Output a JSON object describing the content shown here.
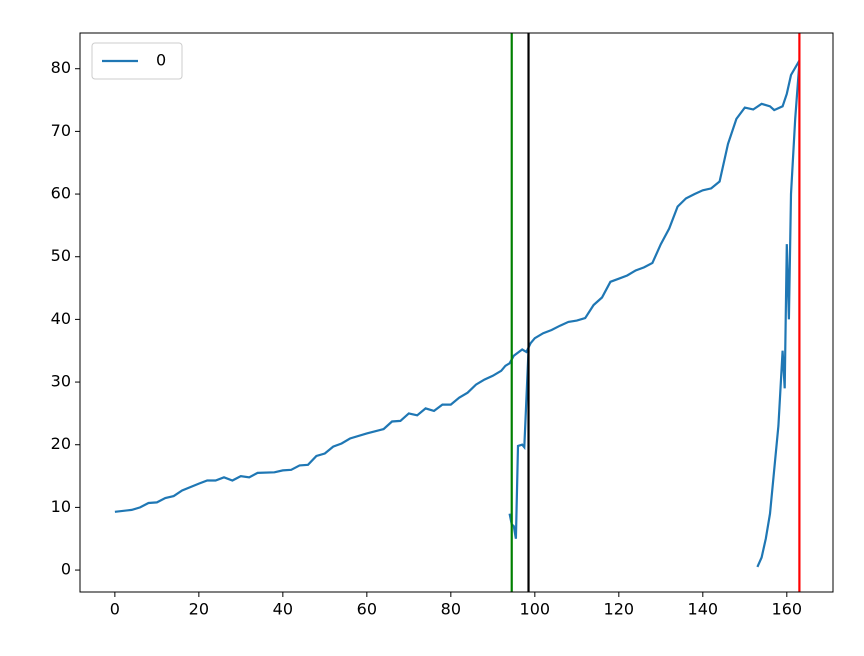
{
  "chart_data": {
    "type": "line",
    "x": [
      0,
      4,
      6,
      8,
      10,
      12,
      14,
      16,
      20,
      22,
      24,
      26,
      28,
      30,
      32,
      34,
      38,
      40,
      42,
      44,
      46,
      48,
      50,
      52,
      54,
      56,
      60,
      64,
      66,
      68,
      70,
      72,
      74,
      76,
      78,
      80,
      82,
      84,
      86,
      88,
      90,
      92,
      93,
      94,
      95,
      97,
      98,
      99,
      100,
      102,
      104,
      106,
      108,
      110,
      112,
      114,
      116,
      118,
      120,
      122,
      124,
      126,
      128,
      130,
      132,
      134,
      136,
      138,
      140,
      142,
      144,
      146,
      148,
      150,
      152,
      154,
      156,
      157,
      159,
      160,
      161,
      163,
      null,
      94,
      94.5,
      95,
      95.5,
      96,
      97,
      97.5,
      98.5,
      null,
      153,
      154,
      155,
      156,
      157,
      158,
      158.5,
      159,
      159.5,
      160,
      160.5,
      161,
      162,
      163
    ],
    "series": [
      {
        "name": "0",
        "color": "#1f77b4",
        "values": [
          9.3,
          9.6,
          10,
          10.7,
          10.8,
          11.5,
          11.8,
          12.7,
          13.8,
          14.3,
          14.3,
          14.8,
          14.3,
          15,
          14.8,
          15.5,
          15.6,
          15.9,
          16,
          16.7,
          16.8,
          18.2,
          18.6,
          19.7,
          20.2,
          21,
          21.8,
          22.5,
          23.7,
          23.8,
          25,
          24.7,
          25.8,
          25.4,
          26.4,
          26.4,
          27.5,
          28.3,
          29.6,
          30.4,
          31,
          31.8,
          32.6,
          33,
          34.2,
          35.2,
          34.8,
          36.2,
          37,
          37.8,
          38.3,
          39,
          39.6,
          39.8,
          40.2,
          42.3,
          43.5,
          46,
          46.5,
          47,
          47.8,
          48.3,
          49,
          52,
          54.5,
          58,
          59.3,
          60,
          60.6,
          60.9,
          62,
          68,
          72,
          73.8,
          73.5,
          74.4,
          74,
          73.4,
          74,
          76,
          79,
          81.3,
          null,
          9,
          7.3,
          7,
          5,
          19.8,
          20,
          19.6,
          35,
          null,
          0.5,
          2,
          5,
          9,
          16,
          23,
          29,
          35,
          29,
          52,
          40,
          60,
          72,
          81
        ]
      }
    ],
    "vlines": [
      {
        "x": 94.5,
        "color": "green"
      },
      {
        "x": 98.5,
        "color": "black"
      },
      {
        "x": 163,
        "color": "red"
      }
    ],
    "xlim": [
      -8.3,
      171
    ],
    "ylim": [
      -3.5,
      85.7
    ],
    "xticks": [
      0,
      20,
      40,
      60,
      80,
      100,
      120,
      140,
      160
    ],
    "yticks": [
      0,
      10,
      20,
      30,
      40,
      50,
      60,
      70,
      80
    ],
    "legend": "upper left",
    "grid": false
  }
}
